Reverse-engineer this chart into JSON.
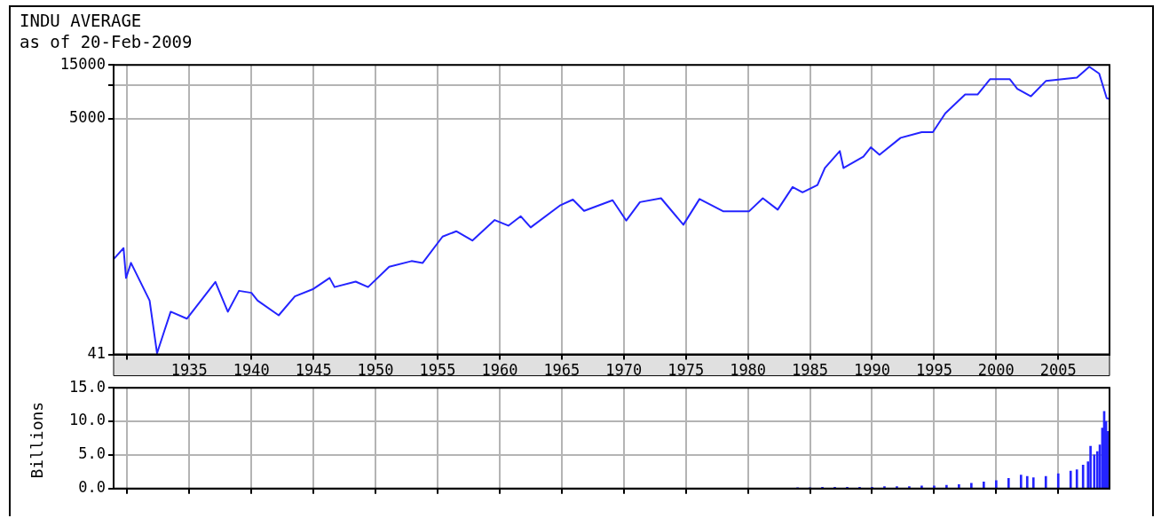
{
  "chart_data": [
    {
      "type": "line",
      "title": "INDU AVERAGE",
      "subtitle": "as of 20-Feb-2009",
      "color": "#2424ff",
      "grid": true,
      "log": "y",
      "marker": "none",
      "x": [
        1928.9,
        1929.7,
        1929.9,
        1930.3,
        1931.8,
        1932.4,
        1933.0,
        1933.5,
        1934.8,
        1937.1,
        1938.1,
        1939.0,
        1940.0,
        1940.5,
        1942.2,
        1943.5,
        1945.0,
        1946.3,
        1946.7,
        1948.4,
        1949.4,
        1951.1,
        1952.9,
        1953.8,
        1955.4,
        1956.5,
        1957.8,
        1959.6,
        1960.7,
        1961.7,
        1962.5,
        1964.9,
        1965.9,
        1966.8,
        1969.1,
        1970.2,
        1971.3,
        1973.0,
        1974.8,
        1976.1,
        1978.0,
        1980.1,
        1981.2,
        1982.4,
        1983.6,
        1984.4,
        1985.6,
        1986.2,
        1987.4,
        1987.7,
        1989.3,
        1989.9,
        1990.6,
        1992.3,
        1994.0,
        1994.9,
        1995.9,
        1997.5,
        1998.5,
        1999.5,
        2001.1,
        2001.7,
        2002.8,
        2004.0,
        2006.5,
        2007.5,
        2008.3,
        2008.9,
        2009.1
      ],
      "values": [
        286,
        358,
        195,
        265,
        123,
        42,
        67,
        98,
        85,
        180,
        98,
        150,
        144,
        123,
        91,
        134,
        156,
        195,
        162,
        181,
        162,
        245,
        275,
        265,
        453,
        505,
        418,
        635,
        566,
        686,
        546,
        860,
        964,
        766,
        950,
        628,
        915,
        990,
        577,
        975,
        760,
        760,
        990,
        785,
        1245,
        1117,
        1297,
        1833,
        2592,
        1833,
        2310,
        2800,
        2400,
        3393,
        3810,
        3810,
        5600,
        8200,
        8200,
        11200,
        11200,
        9230,
        7920,
        10800,
        11600,
        14450,
        12560,
        7630,
        7500
      ],
      "xlim": [
        1928.9,
        2009.13
      ],
      "xticks": [
        {
          "value": 1930,
          "label": null
        },
        1935,
        1940,
        1945,
        1950,
        1955,
        1960,
        1965,
        1970,
        1975,
        1980,
        1985,
        1990,
        1995,
        2000,
        2005
      ],
      "ylim": [
        41,
        15000
      ],
      "yticks": [
        41,
        5000,
        {
          "value": 10000,
          "label": null
        },
        15000
      ]
    },
    {
      "type": "bar",
      "ylabel": "Billions",
      "color": "#2424ff",
      "grid": true,
      "tick_labels": "y",
      "x": [
        1984,
        1985,
        1986,
        1987,
        1988,
        1989,
        1990,
        1991,
        1992,
        1993,
        1994,
        1995,
        1996,
        1997,
        1998,
        1999,
        2000,
        2001,
        2002,
        2002.5,
        2003,
        2004,
        2005,
        2006,
        2006.5,
        2007,
        2007.4,
        2007.6,
        2007.9,
        2008.15,
        2008.35,
        2008.55,
        2008.7,
        2008.85,
        2009.0
      ],
      "values": [
        0.1,
        0.1,
        0.2,
        0.2,
        0.2,
        0.2,
        0.2,
        0.3,
        0.3,
        0.3,
        0.4,
        0.4,
        0.5,
        0.6,
        0.8,
        1.0,
        1.2,
        1.5,
        2.0,
        1.8,
        1.6,
        1.8,
        2.2,
        2.6,
        2.8,
        3.5,
        4.0,
        6.3,
        5.0,
        5.5,
        6.5,
        9.0,
        11.5,
        10.0,
        8.5
      ],
      "xlim": [
        1928.9,
        2009.13
      ],
      "xticks": [
        {
          "value": 1930,
          "label": null
        },
        1935,
        1940,
        1945,
        1950,
        1955,
        1960,
        1965,
        1970,
        1975,
        1980,
        1985,
        1990,
        1995,
        2000,
        2005
      ],
      "ylim": [
        0,
        15
      ],
      "yticks": [
        {
          "value": 0,
          "label": "0.0"
        },
        {
          "value": 5,
          "label": "5.0"
        },
        {
          "value": 10,
          "label": "10.0"
        },
        {
          "value": 15,
          "label": "15.0"
        }
      ]
    }
  ]
}
